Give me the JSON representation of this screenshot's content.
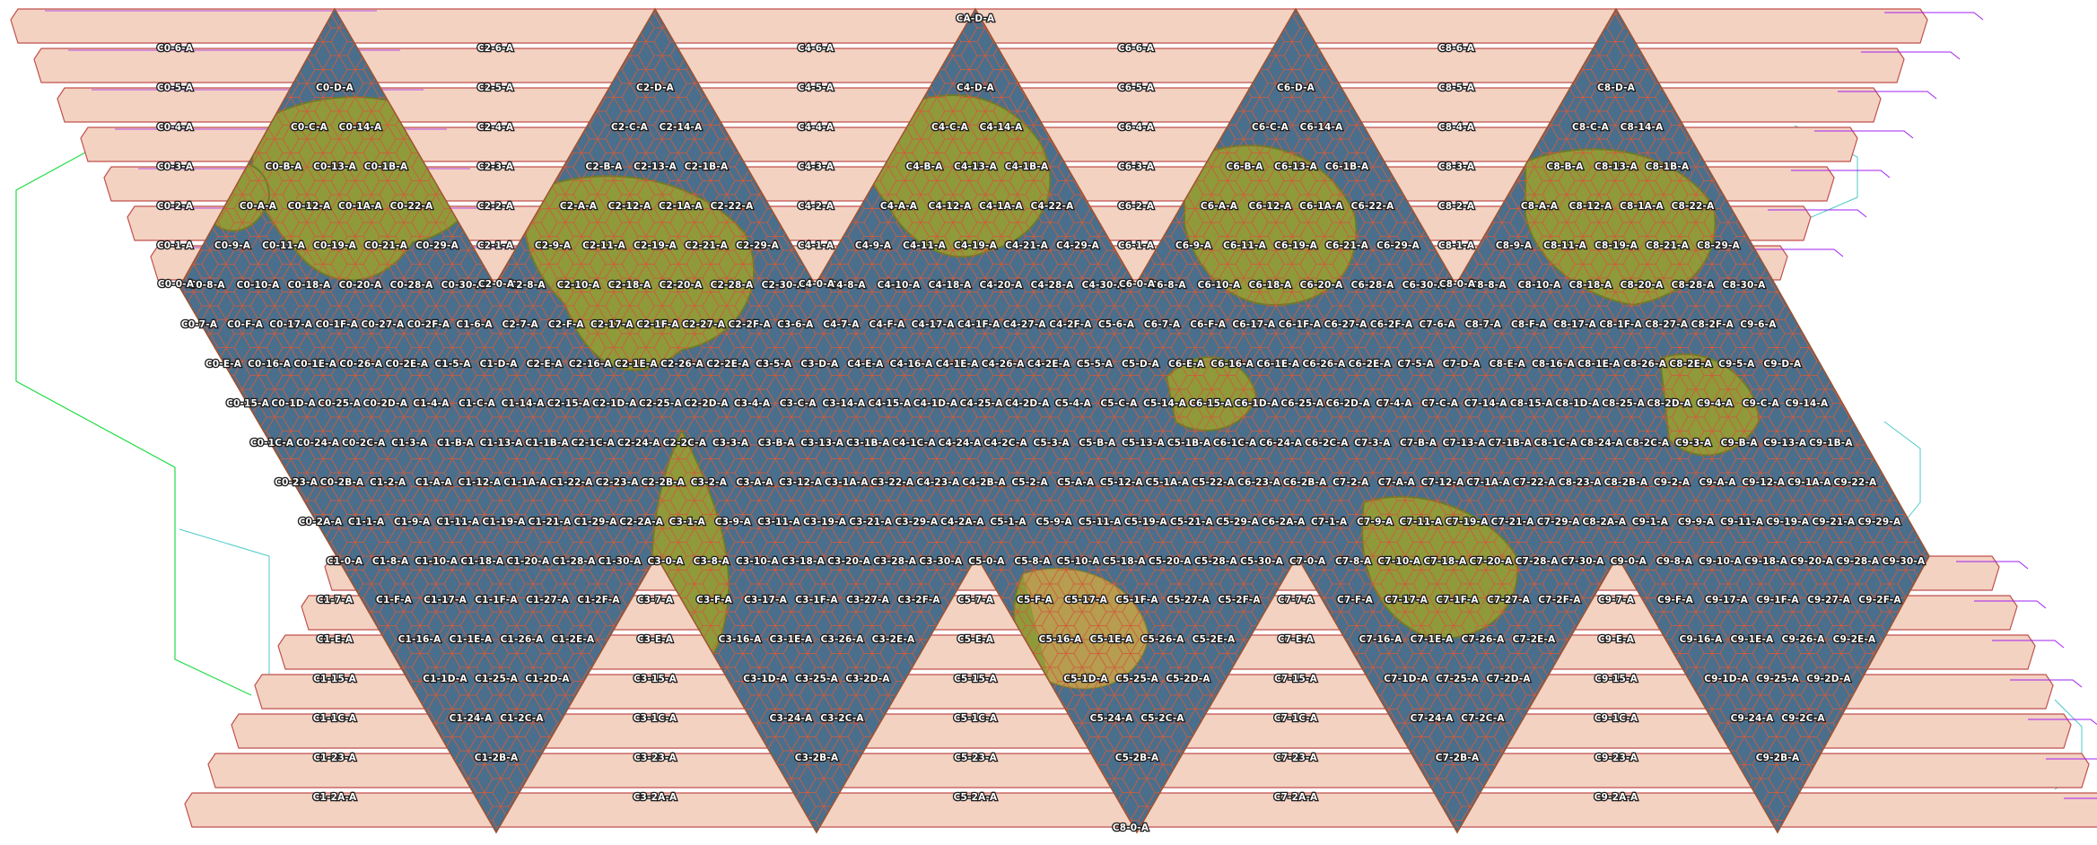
{
  "map": {
    "top_label": "CA-D-A",
    "bottom_label": "C8-0-A",
    "colors": {
      "ocean": "#4a6f8c",
      "land": "#8f9a3a",
      "land_dark": "#6f7a2c",
      "ice": "#d8a060",
      "strip_fill": "#f3d2c2",
      "strip_stroke": "#c0504d",
      "hex_stroke": "#d05a3c",
      "outline_green": "#22dd44",
      "outline_cyan": "#4cc9c9",
      "outline_purple": "#a020f0"
    },
    "left_strips": [
      "C0-6-A",
      "C0-5-A",
      "C0-4-A",
      "C0-3-A",
      "C0-2-A",
      "C0-1-A"
    ],
    "top_strips": [
      [
        "C2-6-A",
        "C4-6-A",
        "C6-6-A",
        "C8-6-A"
      ],
      [
        "C2-5-A",
        "C4-5-A",
        "C6-5-A",
        "C8-5-A"
      ],
      [
        "C2-4-A",
        "C4-4-A",
        "C6-4-A",
        "C8-4-A"
      ],
      [
        "C2-3-A",
        "C4-3-A",
        "C6-3-A",
        "C8-3-A"
      ],
      [
        "C2-2-A",
        "C4-2-A",
        "C6-2-A",
        "C8-2-A"
      ],
      [
        "C2-1-A",
        "C4-1-A",
        "C6-1-A",
        "C8-1-A"
      ]
    ],
    "bottom_strips": [
      [
        "C1-7-A",
        "C3-7-A",
        "C5-7-A",
        "C7-7-A",
        "C9-7-A"
      ],
      [
        "C1-E-A",
        "C3-E-A",
        "C5-E-A",
        "C7-E-A",
        "C9-E-A"
      ],
      [
        "C1-15-A",
        "C3-15-A",
        "C5-15-A",
        "C7-15-A",
        "C9-15-A"
      ],
      [
        "C1-1C-A",
        "C3-1C-A",
        "C5-1C-A",
        "C7-1C-A",
        "C9-1C-A"
      ],
      [
        "C1-23-A",
        "C3-23-A",
        "C5-23-A",
        "C7-23-A",
        "C9-23-A"
      ],
      [
        "C1-2A-A",
        "C3-2A-A",
        "C5-2A-A",
        "C7-2A-A",
        "C9-2A-A"
      ]
    ],
    "up_triangles": [
      {
        "rows": [
          [
            "C0-D-A"
          ],
          [
            "C0-C-A",
            "C0-14-A"
          ],
          [
            "C0-B-A",
            "C0-13-A",
            "C0-1B-A"
          ],
          [
            "C0-A-A",
            "C0-12-A",
            "C0-1A-A",
            "C0-22-A"
          ],
          [
            "C0-9-A",
            "C0-11-A",
            "C0-19-A",
            "C0-21-A",
            "C0-29-A"
          ],
          [
            "C0-8-A",
            "C0-10-A",
            "C0-18-A",
            "C0-20-A",
            "C0-28-A",
            "C0-30-A"
          ]
        ]
      },
      {
        "rows": [
          [
            "C2-D-A"
          ],
          [
            "C2-C-A",
            "C2-14-A"
          ],
          [
            "C2-B-A",
            "C2-13-A",
            "C2-1B-A"
          ],
          [
            "C2-A-A",
            "C2-12-A",
            "C2-1A-A",
            "C2-22-A"
          ],
          [
            "C2-9-A",
            "C2-11-A",
            "C2-19-A",
            "C2-21-A",
            "C2-29-A"
          ],
          [
            "C2-8-A",
            "C2-10-A",
            "C2-18-A",
            "C2-20-A",
            "C2-28-A",
            "C2-30-A"
          ]
        ]
      },
      {
        "rows": [
          [
            "C4-D-A"
          ],
          [
            "C4-C-A",
            "C4-14-A"
          ],
          [
            "C4-B-A",
            "C4-13-A",
            "C4-1B-A"
          ],
          [
            "C4-A-A",
            "C4-12-A",
            "C4-1A-A",
            "C4-22-A"
          ],
          [
            "C4-9-A",
            "C4-11-A",
            "C4-19-A",
            "C4-21-A",
            "C4-29-A"
          ],
          [
            "C4-8-A",
            "C4-10-A",
            "C4-18-A",
            "C4-20-A",
            "C4-28-A",
            "C4-30-A"
          ]
        ]
      },
      {
        "rows": [
          [
            "C6-D-A"
          ],
          [
            "C6-C-A",
            "C6-14-A"
          ],
          [
            "C6-B-A",
            "C6-13-A",
            "C6-1B-A"
          ],
          [
            "C6-A-A",
            "C6-12-A",
            "C6-1A-A",
            "C6-22-A"
          ],
          [
            "C6-9-A",
            "C6-11-A",
            "C6-19-A",
            "C6-21-A",
            "C6-29-A"
          ],
          [
            "C6-8-A",
            "C6-10-A",
            "C6-18-A",
            "C6-20-A",
            "C6-28-A",
            "C6-30-A"
          ]
        ]
      },
      {
        "rows": [
          [
            "C8-D-A"
          ],
          [
            "C8-C-A",
            "C8-14-A"
          ],
          [
            "C8-B-A",
            "C8-13-A",
            "C8-1B-A"
          ],
          [
            "C8-A-A",
            "C8-12-A",
            "C8-1A-A",
            "C8-22-A"
          ],
          [
            "C8-9-A",
            "C8-11-A",
            "C8-19-A",
            "C8-21-A",
            "C8-29-A"
          ],
          [
            "C8-8-A",
            "C8-10-A",
            "C8-18-A",
            "C8-20-A",
            "C8-28-A",
            "C8-30-A"
          ]
        ]
      }
    ],
    "side_labels": [
      "C0-0-A",
      "C2-0-A",
      "C4-0-A",
      "C6-0-A",
      "C8-0-A"
    ],
    "band_rows": [
      [
        "C0-7-A",
        "C0-F-A",
        "C0-17-A",
        "C0-1F-A",
        "C0-27-A",
        "C0-2F-A",
        "C1-6-A",
        "C2-7-A",
        "C2-F-A",
        "C2-17-A",
        "C2-1F-A",
        "C2-27-A",
        "C2-2F-A",
        "C3-6-A",
        "C4-7-A",
        "C4-F-A",
        "C4-17-A",
        "C4-1F-A",
        "C4-27-A",
        "C4-2F-A",
        "C5-6-A",
        "C6-7-A",
        "C6-F-A",
        "C6-17-A",
        "C6-1F-A",
        "C6-27-A",
        "C6-2F-A",
        "C7-6-A",
        "C8-7-A",
        "C8-F-A",
        "C8-17-A",
        "C8-1F-A",
        "C8-27-A",
        "C8-2F-A",
        "C9-6-A"
      ],
      [
        "C0-E-A",
        "C0-16-A",
        "C0-1E-A",
        "C0-26-A",
        "C0-2E-A",
        "C1-5-A",
        "C1-D-A",
        "C2-E-A",
        "C2-16-A",
        "C2-1E-A",
        "C2-26-A",
        "C2-2E-A",
        "C3-5-A",
        "C3-D-A",
        "C4-E-A",
        "C4-16-A",
        "C4-1E-A",
        "C4-26-A",
        "C4-2E-A",
        "C5-5-A",
        "C5-D-A",
        "C6-E-A",
        "C6-16-A",
        "C6-1E-A",
        "C6-26-A",
        "C6-2E-A",
        "C7-5-A",
        "C7-D-A",
        "C8-E-A",
        "C8-16-A",
        "C8-1E-A",
        "C8-26-A",
        "C8-2E-A",
        "C9-5-A",
        "C9-D-A"
      ],
      [
        "C0-15-A",
        "C0-1D-A",
        "C0-25-A",
        "C0-2D-A",
        "C1-4-A",
        "C1-C-A",
        "C1-14-A",
        "C2-15-A",
        "C2-1D-A",
        "C2-25-A",
        "C2-2D-A",
        "C3-4-A",
        "C3-C-A",
        "C3-14-A",
        "C4-15-A",
        "C4-1D-A",
        "C4-25-A",
        "C4-2D-A",
        "C5-4-A",
        "C5-C-A",
        "C5-14-A",
        "C6-15-A",
        "C6-1D-A",
        "C6-25-A",
        "C6-2D-A",
        "C7-4-A",
        "C7-C-A",
        "C7-14-A",
        "C8-15-A",
        "C8-1D-A",
        "C8-25-A",
        "C8-2D-A",
        "C9-4-A",
        "C9-C-A",
        "C9-14-A"
      ],
      [
        "C0-1C-A",
        "C0-24-A",
        "C0-2C-A",
        "C1-3-A",
        "C1-B-A",
        "C1-13-A",
        "C1-1B-A",
        "C2-1C-A",
        "C2-24-A",
        "C2-2C-A",
        "C3-3-A",
        "C3-B-A",
        "C3-13-A",
        "C3-1B-A",
        "C4-1C-A",
        "C4-24-A",
        "C4-2C-A",
        "C5-3-A",
        "C5-B-A",
        "C5-13-A",
        "C5-1B-A",
        "C6-1C-A",
        "C6-24-A",
        "C6-2C-A",
        "C7-3-A",
        "C7-B-A",
        "C7-13-A",
        "C7-1B-A",
        "C8-1C-A",
        "C8-24-A",
        "C8-2C-A",
        "C9-3-A",
        "C9-B-A",
        "C9-13-A",
        "C9-1B-A"
      ],
      [
        "C0-23-A",
        "C0-2B-A",
        "C1-2-A",
        "C1-A-A",
        "C1-12-A",
        "C1-1A-A",
        "C1-22-A",
        "C2-23-A",
        "C2-2B-A",
        "C3-2-A",
        "C3-A-A",
        "C3-12-A",
        "C3-1A-A",
        "C3-22-A",
        "C4-23-A",
        "C4-2B-A",
        "C5-2-A",
        "C5-A-A",
        "C5-12-A",
        "C5-1A-A",
        "C5-22-A",
        "C6-23-A",
        "C6-2B-A",
        "C7-2-A",
        "C7-A-A",
        "C7-12-A",
        "C7-1A-A",
        "C7-22-A",
        "C8-23-A",
        "C8-2B-A",
        "C9-2-A",
        "C9-A-A",
        "C9-12-A",
        "C9-1A-A",
        "C9-22-A"
      ],
      [
        "C0-2A-A",
        "C1-1-A",
        "C1-9-A",
        "C1-11-A",
        "C1-19-A",
        "C1-21-A",
        "C1-29-A",
        "C2-2A-A",
        "C3-1-A",
        "C3-9-A",
        "C3-11-A",
        "C3-19-A",
        "C3-21-A",
        "C3-29-A",
        "C4-2A-A",
        "C5-1-A",
        "C5-9-A",
        "C5-11-A",
        "C5-19-A",
        "C5-21-A",
        "C5-29-A",
        "C6-2A-A",
        "C7-1-A",
        "C7-9-A",
        "C7-11-A",
        "C7-19-A",
        "C7-21-A",
        "C7-29-A",
        "C8-2A-A",
        "C9-1-A",
        "C9-9-A",
        "C9-11-A",
        "C9-19-A",
        "C9-21-A",
        "C9-29-A"
      ],
      [
        "C1-0-A",
        "C1-8-A",
        "C1-10-A",
        "C1-18-A",
        "C1-20-A",
        "C1-28-A",
        "C1-30-A",
        "C3-0-A",
        "C3-8-A",
        "C3-10-A",
        "C3-18-A",
        "C3-20-A",
        "C3-28-A",
        "C3-30-A",
        "C5-0-A",
        "C5-8-A",
        "C5-10-A",
        "C5-18-A",
        "C5-20-A",
        "C5-28-A",
        "C5-30-A",
        "C7-0-A",
        "C7-8-A",
        "C7-10-A",
        "C7-18-A",
        "C7-20-A",
        "C7-28-A",
        "C7-30-A",
        "C9-0-A",
        "C9-8-A",
        "C9-10-A",
        "C9-18-A",
        "C9-20-A",
        "C9-28-A",
        "C9-30-A"
      ]
    ],
    "down_triangles": [
      {
        "rows": [
          [
            "C1-F-A",
            "C1-17-A",
            "C1-1F-A",
            "C1-27-A",
            "C1-2F-A"
          ],
          [
            "C1-16-A",
            "C1-1E-A",
            "C1-26-A",
            "C1-2E-A"
          ],
          [
            "C1-1D-A",
            "C1-25-A",
            "C1-2D-A"
          ],
          [
            "C1-24-A",
            "C1-2C-A"
          ],
          [
            "C1-2B-A"
          ]
        ]
      },
      {
        "rows": [
          [
            "C3-F-A",
            "C3-17-A",
            "C3-1F-A",
            "C3-27-A",
            "C3-2F-A"
          ],
          [
            "C3-16-A",
            "C3-1E-A",
            "C3-26-A",
            "C3-2E-A"
          ],
          [
            "C3-1D-A",
            "C3-25-A",
            "C3-2D-A"
          ],
          [
            "C3-24-A",
            "C3-2C-A"
          ],
          [
            "C3-2B-A"
          ]
        ]
      },
      {
        "rows": [
          [
            "C5-F-A",
            "C5-17-A",
            "C5-1F-A",
            "C5-27-A",
            "C5-2F-A"
          ],
          [
            "C5-16-A",
            "C5-1E-A",
            "C5-26-A",
            "C5-2E-A"
          ],
          [
            "C5-1D-A",
            "C5-25-A",
            "C5-2D-A"
          ],
          [
            "C5-24-A",
            "C5-2C-A"
          ],
          [
            "C5-2B-A"
          ]
        ]
      },
      {
        "rows": [
          [
            "C7-F-A",
            "C7-17-A",
            "C7-1F-A",
            "C7-27-A",
            "C7-2F-A"
          ],
          [
            "C7-16-A",
            "C7-1E-A",
            "C7-26-A",
            "C7-2E-A"
          ],
          [
            "C7-1D-A",
            "C7-25-A",
            "C7-2D-A"
          ],
          [
            "C7-24-A",
            "C7-2C-A"
          ],
          [
            "C7-2B-A"
          ]
        ]
      },
      {
        "rows": [
          [
            "C9-F-A",
            "C9-17-A",
            "C9-1F-A",
            "C9-27-A",
            "C9-2F-A"
          ],
          [
            "C9-16-A",
            "C9-1E-A",
            "C9-26-A",
            "C9-2E-A"
          ],
          [
            "C9-1D-A",
            "C9-25-A",
            "C9-2D-A"
          ],
          [
            "C9-24-A",
            "C9-2C-A"
          ],
          [
            "C9-2B-A"
          ]
        ]
      }
    ]
  }
}
